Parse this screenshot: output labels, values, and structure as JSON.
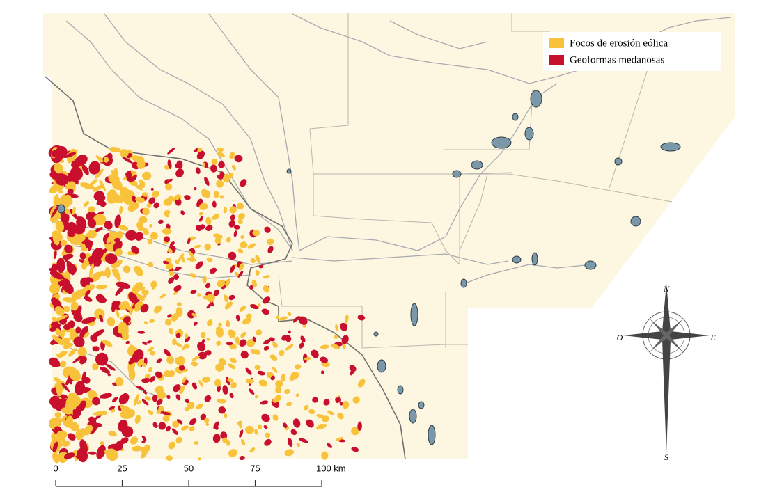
{
  "legend": {
    "items": [
      {
        "label": "Focos de erosión eólica",
        "color": "#f8c23a"
      },
      {
        "label": "Geoformas medanosas",
        "color": "#c8102e"
      }
    ]
  },
  "scale_bar": {
    "labels": [
      "0",
      "25",
      "50",
      "75",
      "100 km"
    ]
  },
  "compass": {
    "north": "N",
    "south": "S",
    "east": "E",
    "west": "O"
  },
  "lake_color": "#7a98a8",
  "land_color": "#fdf6e0"
}
